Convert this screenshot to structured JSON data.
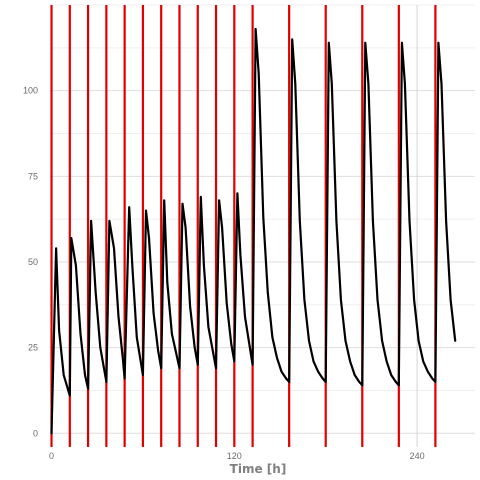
{
  "chart_data": {
    "type": "line",
    "title": "",
    "xlabel": "Time [h]",
    "ylabel": "",
    "xlim": [
      -1,
      278
    ],
    "ylim": [
      -4,
      125
    ],
    "x_ticks": [
      0,
      120,
      240
    ],
    "y_ticks": [
      0,
      25,
      50,
      75,
      100
    ],
    "grid": true,
    "legend": "none",
    "colors": {
      "concentration": "#000000",
      "dose": "#e00000",
      "grid": "#e6e6e6",
      "zero_line": "#cccccc"
    },
    "dose_times": [
      0,
      12,
      24,
      36,
      48,
      60,
      72,
      84,
      96,
      108,
      120,
      132,
      156,
      180,
      204,
      228,
      252
    ],
    "series": [
      {
        "values": [
          [
            0,
            0
          ],
          [
            3,
            54
          ],
          [
            5,
            30
          ],
          [
            8,
            17
          ],
          [
            12,
            11
          ],
          [
            13,
            57
          ],
          [
            16,
            49
          ],
          [
            19,
            29
          ],
          [
            22,
            17
          ],
          [
            24,
            13
          ],
          [
            26,
            62
          ],
          [
            29,
            41
          ],
          [
            32,
            25
          ],
          [
            36,
            15
          ],
          [
            38,
            62
          ],
          [
            41,
            54
          ],
          [
            44,
            34
          ],
          [
            47,
            21
          ],
          [
            48,
            16
          ],
          [
            51,
            66
          ],
          [
            53,
            49
          ],
          [
            56,
            28
          ],
          [
            60,
            17
          ],
          [
            62,
            65
          ],
          [
            64,
            57
          ],
          [
            67,
            35
          ],
          [
            70,
            24
          ],
          [
            72,
            19
          ],
          [
            74,
            68
          ],
          [
            76,
            44
          ],
          [
            79,
            29
          ],
          [
            84,
            19
          ],
          [
            86,
            67
          ],
          [
            88,
            60
          ],
          [
            91,
            37
          ],
          [
            94,
            25
          ],
          [
            96,
            20
          ],
          [
            98,
            69
          ],
          [
            100,
            49
          ],
          [
            103,
            31
          ],
          [
            108,
            19
          ],
          [
            110,
            68
          ],
          [
            112,
            60
          ],
          [
            115,
            38
          ],
          [
            118,
            26
          ],
          [
            120,
            21
          ],
          [
            122,
            70
          ],
          [
            124,
            52
          ],
          [
            127,
            34
          ],
          [
            132,
            20
          ],
          [
            134,
            118
          ],
          [
            136,
            105
          ],
          [
            139,
            63
          ],
          [
            142,
            41
          ],
          [
            145,
            28
          ],
          [
            148,
            22
          ],
          [
            151,
            18
          ],
          [
            154,
            16
          ],
          [
            156,
            15
          ],
          [
            158,
            115
          ],
          [
            160,
            102
          ],
          [
            163,
            62
          ],
          [
            166,
            39
          ],
          [
            169,
            27
          ],
          [
            172,
            21
          ],
          [
            175,
            18
          ],
          [
            178,
            16
          ],
          [
            180,
            15
          ],
          [
            182,
            114
          ],
          [
            184,
            102
          ],
          [
            187,
            62
          ],
          [
            190,
            39
          ],
          [
            193,
            27
          ],
          [
            196,
            21
          ],
          [
            199,
            17
          ],
          [
            202,
            15
          ],
          [
            204,
            14
          ],
          [
            206,
            114
          ],
          [
            208,
            102
          ],
          [
            211,
            62
          ],
          [
            214,
            39
          ],
          [
            217,
            27
          ],
          [
            220,
            21
          ],
          [
            223,
            17
          ],
          [
            226,
            15
          ],
          [
            228,
            14
          ],
          [
            230,
            114
          ],
          [
            232,
            102
          ],
          [
            235,
            62
          ],
          [
            238,
            39
          ],
          [
            241,
            27
          ],
          [
            244,
            21
          ],
          [
            247,
            18
          ],
          [
            250,
            16
          ],
          [
            252,
            15
          ],
          [
            254,
            114
          ],
          [
            256,
            102
          ],
          [
            259,
            62
          ],
          [
            262,
            39
          ],
          [
            265,
            27
          ]
        ]
      }
    ]
  }
}
